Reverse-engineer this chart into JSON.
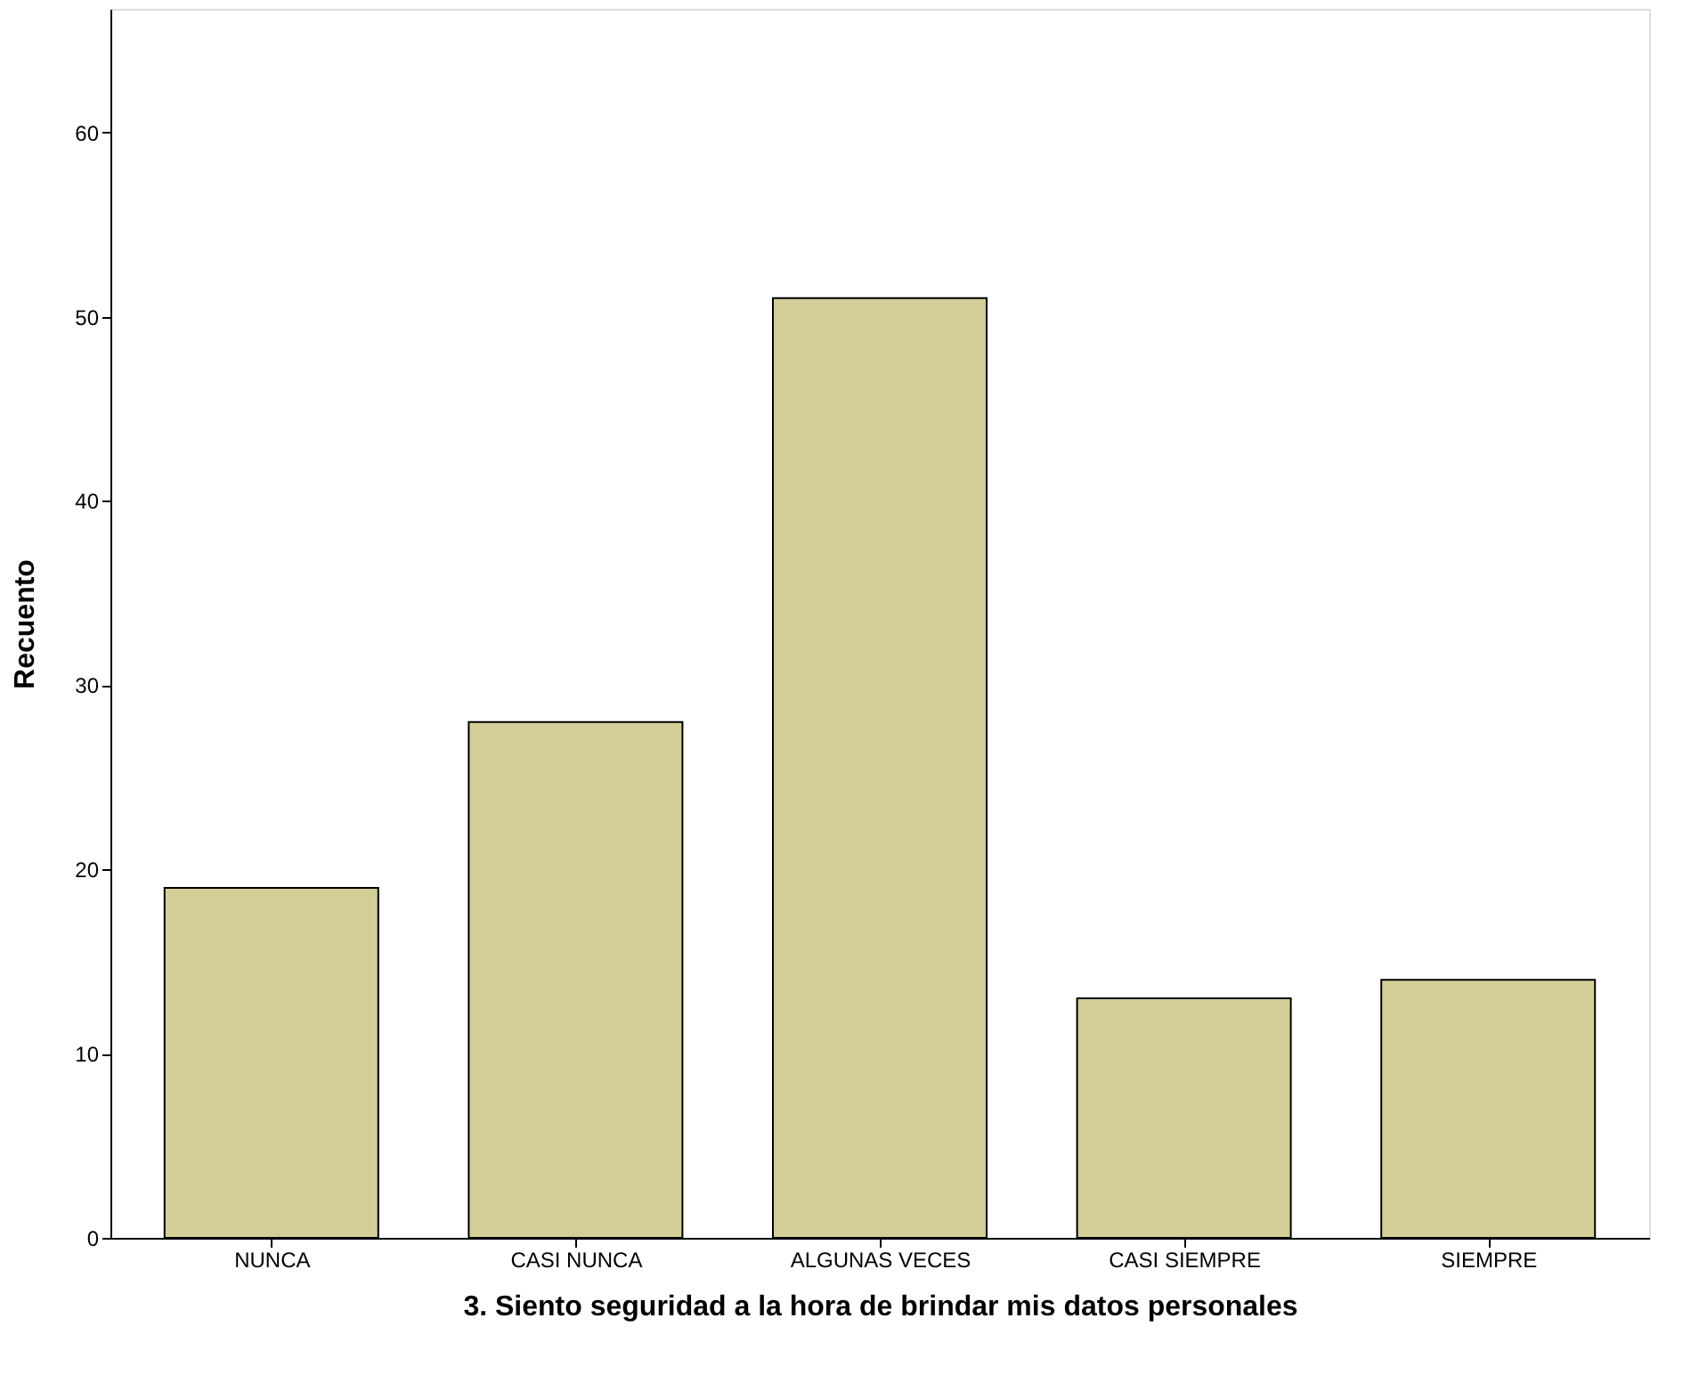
{
  "chart_data": {
    "type": "bar",
    "xlabel": "3. Siento seguridad a la hora de brindar mis datos personales",
    "ylabel": "Recuento",
    "categories": [
      "NUNCA",
      "CASI NUNCA",
      "ALGUNAS VECES",
      "CASI SIEMPRE",
      "SIEMPRE"
    ],
    "values": [
      19,
      28,
      51,
      13,
      14
    ],
    "color": "#d3ce98",
    "ylim": [
      0,
      66.7
    ],
    "yticks": [
      0,
      10,
      20,
      30,
      40,
      50,
      60
    ]
  }
}
